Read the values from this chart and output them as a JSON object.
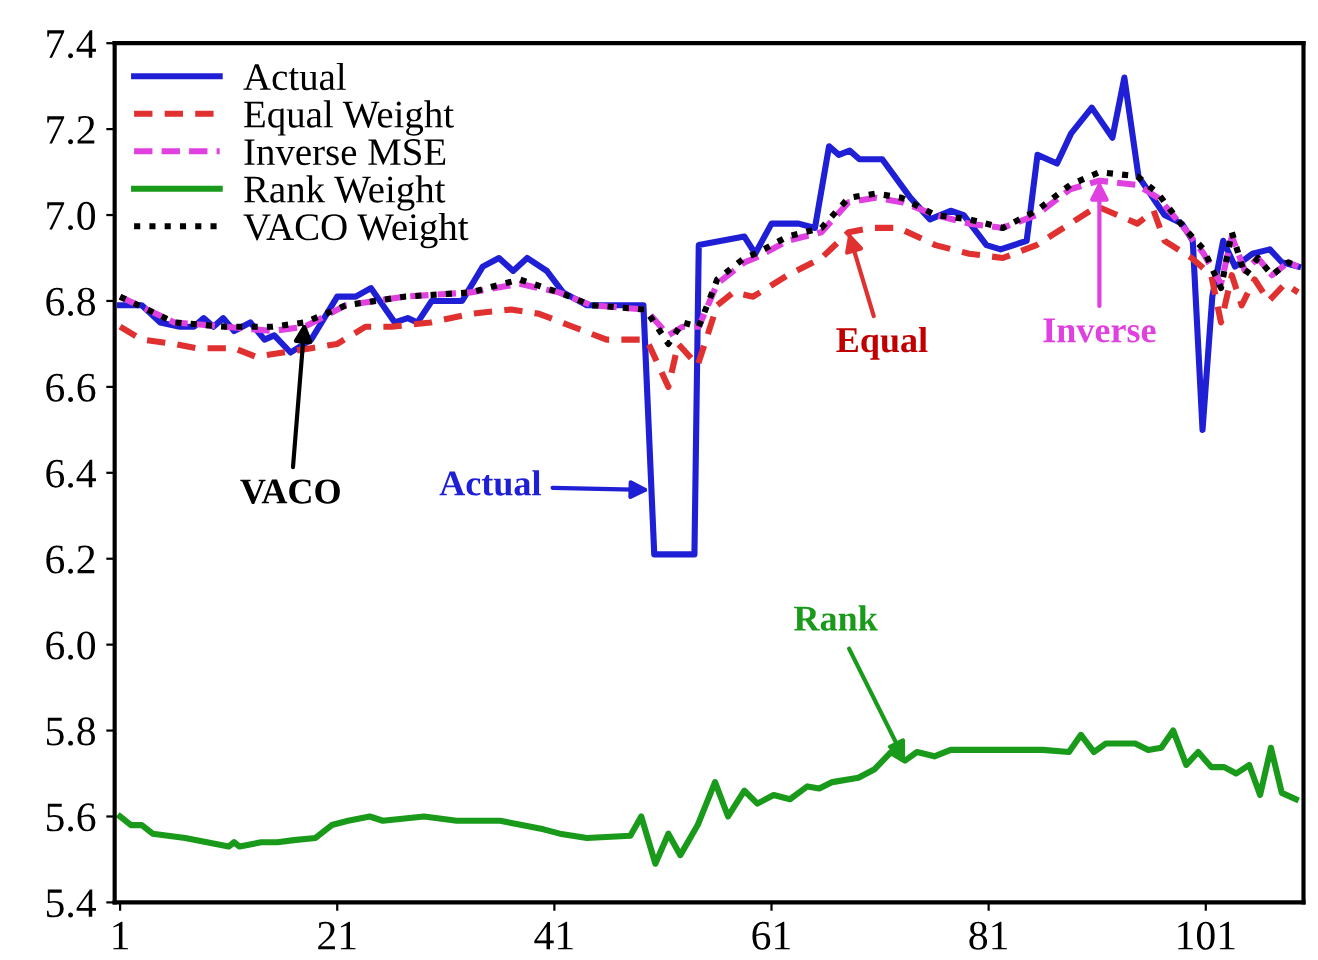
{
  "chart_data": {
    "type": "line",
    "xlim": [
      0.5,
      110
    ],
    "xticks": [
      1,
      21,
      41,
      61,
      81,
      101
    ],
    "ylim": [
      5.4,
      7.4
    ],
    "yticks": [
      5.4,
      5.6,
      5.8,
      {
        "value": 6,
        "label": "6.0"
      },
      6.2,
      6.4,
      6.6,
      6.8,
      {
        "value": 7,
        "label": "7.0"
      },
      7.2,
      7.4
    ],
    "grid": false,
    "legend": "top left",
    "series": [
      {
        "name": "Actual",
        "color": "#1f1fd6",
        "line_style": "solid",
        "x": [
          1,
          3,
          4.7,
          6.5,
          7.8,
          8.7,
          9.6,
          10.5,
          11.5,
          13,
          14.3,
          15.2,
          16.7,
          18.6,
          21,
          22.7,
          24.1,
          26.3,
          27.5,
          28.4,
          29.7,
          31,
          32.5,
          34.4,
          35.9,
          37.2,
          38.5,
          40.3,
          41.8,
          44,
          49.2,
          50.2,
          53.9,
          54.3,
          58.5,
          59.5,
          61,
          63.5,
          65,
          66.3,
          67.2,
          68.2,
          69.1,
          71.2,
          73.8,
          75.6,
          77.5,
          78.7,
          80.8,
          82.1,
          84.5,
          85.5,
          87.3,
          88.6,
          90.5,
          92.4,
          93.5,
          94.8,
          97.2,
          98.8,
          99.8,
          100.7,
          101.6,
          102.6,
          103.7,
          105.3,
          106.9,
          108,
          109.5
        ],
        "values": [
          6.79,
          6.79,
          6.75,
          6.74,
          6.74,
          6.76,
          6.74,
          6.76,
          6.73,
          6.75,
          6.71,
          6.72,
          6.68,
          6.71,
          6.81,
          6.81,
          6.83,
          6.75,
          6.76,
          6.75,
          6.8,
          6.8,
          6.8,
          6.88,
          6.9,
          6.87,
          6.9,
          6.87,
          6.82,
          6.79,
          6.79,
          6.21,
          6.21,
          6.93,
          6.95,
          6.91,
          6.98,
          6.98,
          6.97,
          7.16,
          7.14,
          7.15,
          7.13,
          7.13,
          7.04,
          6.99,
          7.01,
          7.0,
          6.93,
          6.92,
          6.94,
          7.14,
          7.12,
          7.19,
          7.25,
          7.18,
          7.32,
          7.09,
          7.0,
          6.98,
          6.94,
          6.5,
          6.81,
          6.94,
          6.88,
          6.91,
          6.92,
          6.89,
          6.88
        ]
      },
      {
        "name": "Equal Weight",
        "color": "#e03030",
        "line_style": "dashed",
        "x": [
          1,
          3,
          6,
          8,
          11.5,
          13.5,
          16,
          18.6,
          21,
          23.6,
          26,
          29.6,
          33.3,
          37,
          39.6,
          42.7,
          45.8,
          49.5,
          51.5,
          52.4,
          54.2,
          56,
          57.5,
          59.3,
          62.5,
          65.6,
          68.1,
          70.2,
          72.7,
          76.1,
          79.2,
          82.3,
          85.4,
          88.5,
          91,
          94.7,
          96.2,
          97.2,
          99.7,
          101.5,
          102.4,
          103.4,
          104.3,
          105.5,
          106.8,
          108.3,
          109.5
        ],
        "values": [
          6.74,
          6.71,
          6.7,
          6.69,
          6.69,
          6.67,
          6.68,
          6.69,
          6.7,
          6.74,
          6.74,
          6.75,
          6.77,
          6.78,
          6.77,
          6.74,
          6.71,
          6.71,
          6.6,
          6.7,
          6.65,
          6.79,
          6.82,
          6.81,
          6.86,
          6.9,
          6.96,
          6.97,
          6.97,
          6.93,
          6.91,
          6.9,
          6.93,
          6.98,
          7.02,
          6.98,
          7.01,
          6.94,
          6.9,
          6.86,
          6.75,
          6.86,
          6.79,
          6.85,
          6.8,
          6.84,
          6.82
        ]
      },
      {
        "name": "Inverse MSE",
        "color": "#e040e0",
        "line_style": "dashed",
        "x": [
          1,
          6,
          10.7,
          15,
          18,
          21.8,
          27.2,
          33.3,
          37.8,
          41.4,
          44.4,
          49.4,
          51.5,
          52.8,
          54.3,
          56,
          58.5,
          59.5,
          62.5,
          65.6,
          68.1,
          70.6,
          73,
          76.1,
          79.2,
          82.3,
          85.4,
          88.5,
          91.2,
          94.7,
          96.6,
          99,
          100.8,
          102.4,
          103.4,
          104.6,
          105.8,
          107.1,
          108.6,
          109.5
        ],
        "values": [
          6.81,
          6.75,
          6.74,
          6.73,
          6.74,
          6.79,
          6.81,
          6.82,
          6.84,
          6.82,
          6.79,
          6.78,
          6.72,
          6.74,
          6.74,
          6.84,
          6.89,
          6.9,
          6.94,
          6.96,
          7.03,
          7.04,
          7.03,
          7.0,
          6.98,
          6.97,
          7.0,
          7.06,
          7.08,
          7.07,
          7.04,
          6.97,
          6.91,
          6.84,
          6.95,
          6.87,
          6.9,
          6.86,
          6.89,
          6.88
        ]
      },
      {
        "name": "Rank Weight",
        "color": "#1a9a1a",
        "line_style": "solid",
        "x": [
          1,
          2,
          3,
          4,
          7,
          9,
          11,
          11.5,
          12,
          14,
          15.5,
          17,
          19,
          20.5,
          22,
          24,
          25.2,
          29,
          32,
          36,
          38,
          40,
          41.5,
          44,
          48,
          49,
          50.3,
          51.5,
          52.6,
          54.2,
          55.8,
          57,
          58.5,
          59.7,
          61.2,
          62.7,
          64.3,
          65.4,
          66.6,
          69,
          70.5,
          72,
          73.3,
          74.4,
          76,
          77.5,
          80.6,
          86,
          88.4,
          89.5,
          90.7,
          91.8,
          94.5,
          95.7,
          96.9,
          98,
          99.2,
          100.3,
          101.5,
          102.7,
          103.8,
          105,
          106,
          107,
          108,
          109.3
        ],
        "values": [
          5.6,
          5.58,
          5.58,
          5.56,
          5.55,
          5.54,
          5.53,
          5.54,
          5.53,
          5.54,
          5.54,
          5.545,
          5.55,
          5.58,
          5.59,
          5.6,
          5.59,
          5.6,
          5.59,
          5.59,
          5.58,
          5.57,
          5.56,
          5.55,
          5.555,
          5.6,
          5.49,
          5.56,
          5.51,
          5.58,
          5.68,
          5.6,
          5.66,
          5.63,
          5.65,
          5.64,
          5.67,
          5.665,
          5.68,
          5.69,
          5.71,
          5.75,
          5.73,
          5.75,
          5.74,
          5.755,
          5.755,
          5.755,
          5.75,
          5.79,
          5.75,
          5.77,
          5.77,
          5.755,
          5.76,
          5.8,
          5.72,
          5.75,
          5.715,
          5.715,
          5.7,
          5.72,
          5.65,
          5.76,
          5.655,
          5.64
        ]
      },
      {
        "name": "VACO Weight",
        "color": "#000000",
        "line_style": "dotted",
        "x": [
          1,
          6,
          10.7,
          15,
          18,
          21.8,
          27.2,
          33.3,
          37.8,
          41.4,
          44.4,
          49.4,
          51.5,
          52.8,
          54.3,
          56,
          58.5,
          59.5,
          62.5,
          65.6,
          68.1,
          70.6,
          73,
          76.1,
          79.2,
          82.3,
          85.4,
          88.5,
          91.2,
          94.7,
          96.6,
          99,
          100.8,
          102.4,
          103.4,
          104.6,
          105.8,
          107.1,
          108.6,
          109.5
        ],
        "values": [
          6.81,
          6.75,
          6.74,
          6.74,
          6.75,
          6.79,
          6.81,
          6.82,
          6.85,
          6.82,
          6.79,
          6.78,
          6.7,
          6.75,
          6.74,
          6.85,
          6.9,
          6.91,
          6.95,
          6.97,
          7.04,
          7.05,
          7.04,
          7.0,
          6.99,
          6.97,
          7.01,
          7.07,
          7.1,
          7.09,
          7.05,
          6.97,
          6.92,
          6.83,
          6.96,
          6.86,
          6.9,
          6.86,
          6.89,
          6.88
        ]
      }
    ],
    "annotations": [
      {
        "text": "VACO",
        "x": 18,
        "y": 6.75
      },
      "Actual",
      {
        "text": "Equal",
        "x": 68.1,
        "y": 6.96
      },
      {
        "text": "Inverse",
        "x": 91.2,
        "y": 7.08
      },
      {
        "text": "Rank",
        "x": 73.3,
        "y": 5.73
      }
    ]
  }
}
